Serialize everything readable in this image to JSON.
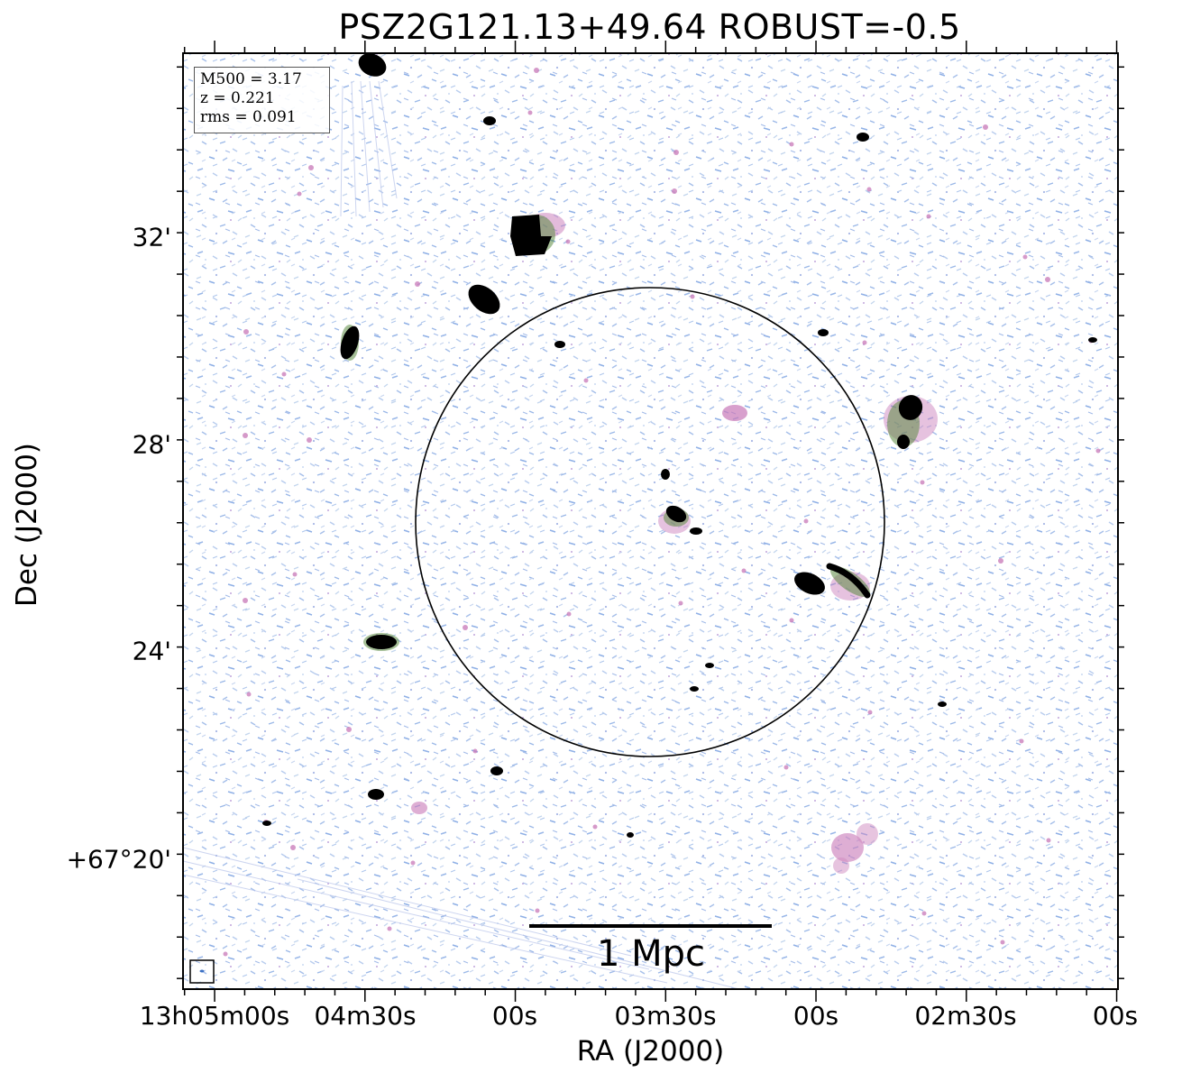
{
  "title": "PSZ2G121.13+49.64 ROBUST=-0.5",
  "axes": {
    "xlabel": "RA (J2000)",
    "ylabel": "Dec (J2000)",
    "x_ticks": [
      "13h05m00s",
      "04m30s",
      "00s",
      "03m30s",
      "00s",
      "02m30s",
      "00s"
    ],
    "y_ticks": [
      "32'",
      "28'",
      "24'",
      "+67°20'"
    ]
  },
  "info": {
    "m500": "M500 = 3.17",
    "z": "z = 0.221",
    "rms": "rms = 0.091"
  },
  "scalebar": {
    "label": "1 Mpc"
  },
  "colors": {
    "noise_blue": "#8fb0e6",
    "noise_light": "#c4d6ee",
    "source_magenta": "#c85fa8",
    "source_green": "#4a7a3a",
    "source_core": "#000000",
    "circle": "#000000"
  }
}
